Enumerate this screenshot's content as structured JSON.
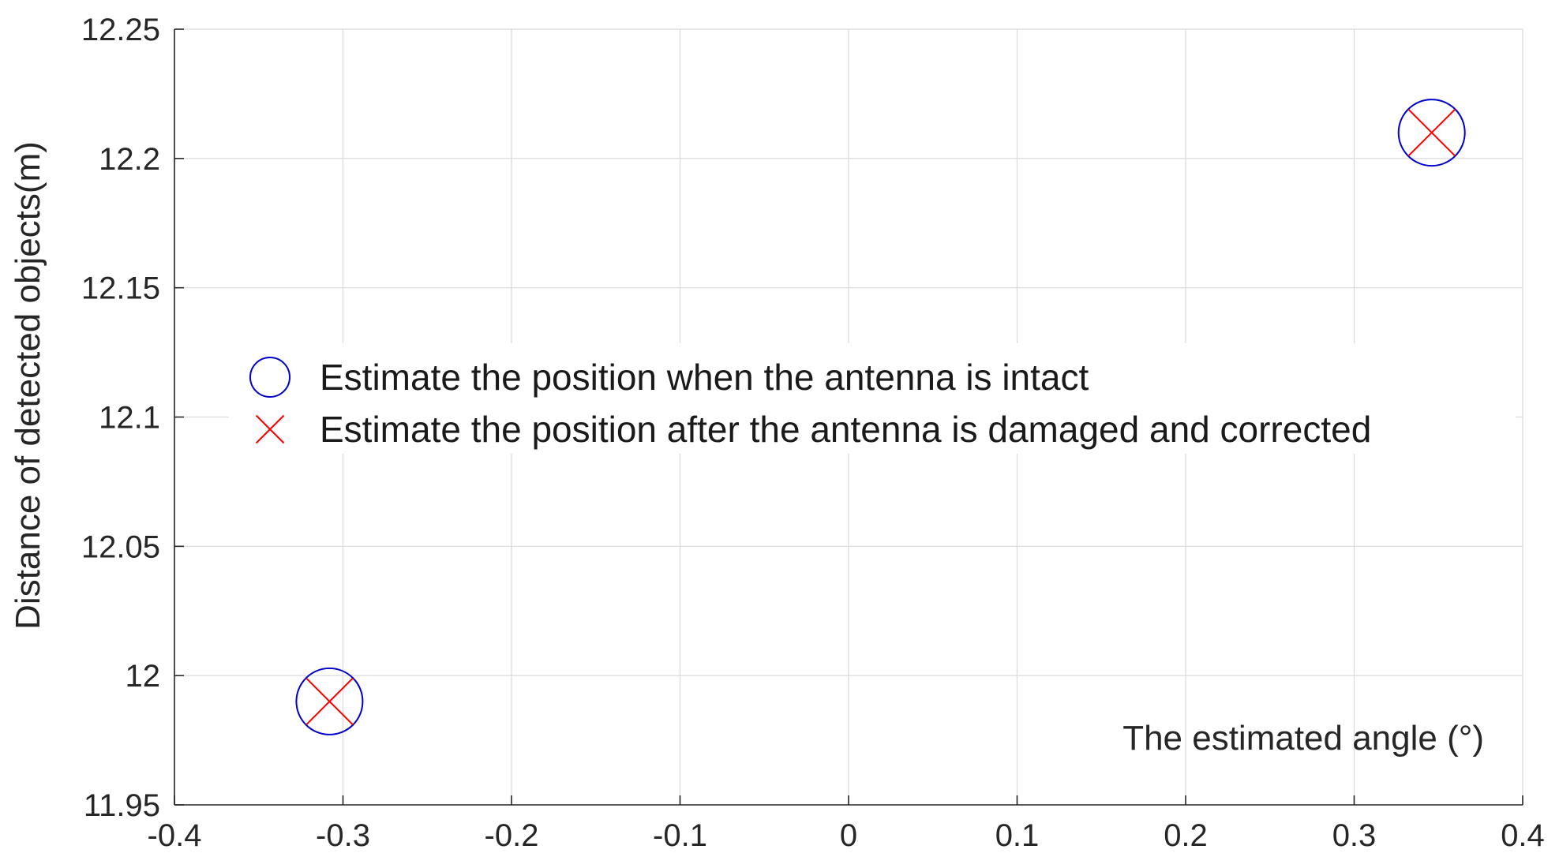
{
  "chart_data": {
    "type": "scatter",
    "title": "",
    "xlabel": "The estimated angle (°)",
    "ylabel": "Distance of detected objects(m)",
    "xlim": [
      -0.4,
      0.4
    ],
    "ylim": [
      11.95,
      12.25
    ],
    "x_ticks": [
      -0.4,
      -0.3,
      -0.2,
      -0.1,
      0,
      0.1,
      0.2,
      0.3,
      0.4
    ],
    "y_ticks": [
      11.95,
      12,
      12.05,
      12.1,
      12.15,
      12.2,
      12.25
    ],
    "x_tick_labels": [
      "-0.4",
      "-0.3",
      "-0.2",
      "-0.1",
      "0",
      "0.1",
      "0.2",
      "0.3",
      "0.4"
    ],
    "y_tick_labels": [
      "11.95",
      "12",
      "12.05",
      "12.1",
      "12.15",
      "12.2",
      "12.25"
    ],
    "grid": true,
    "legend_position": "center-right",
    "series": [
      {
        "name": "Estimate the position when the antenna is intact",
        "marker": "circle",
        "color": "#0000cc",
        "points": [
          {
            "x": -0.308,
            "y": 11.99
          },
          {
            "x": 0.346,
            "y": 12.21
          }
        ]
      },
      {
        "name": "Estimate the position after the antenna is damaged and corrected",
        "marker": "x",
        "color": "#ff0000",
        "points": [
          {
            "x": -0.308,
            "y": 11.99
          },
          {
            "x": 0.346,
            "y": 12.21
          }
        ]
      }
    ]
  }
}
